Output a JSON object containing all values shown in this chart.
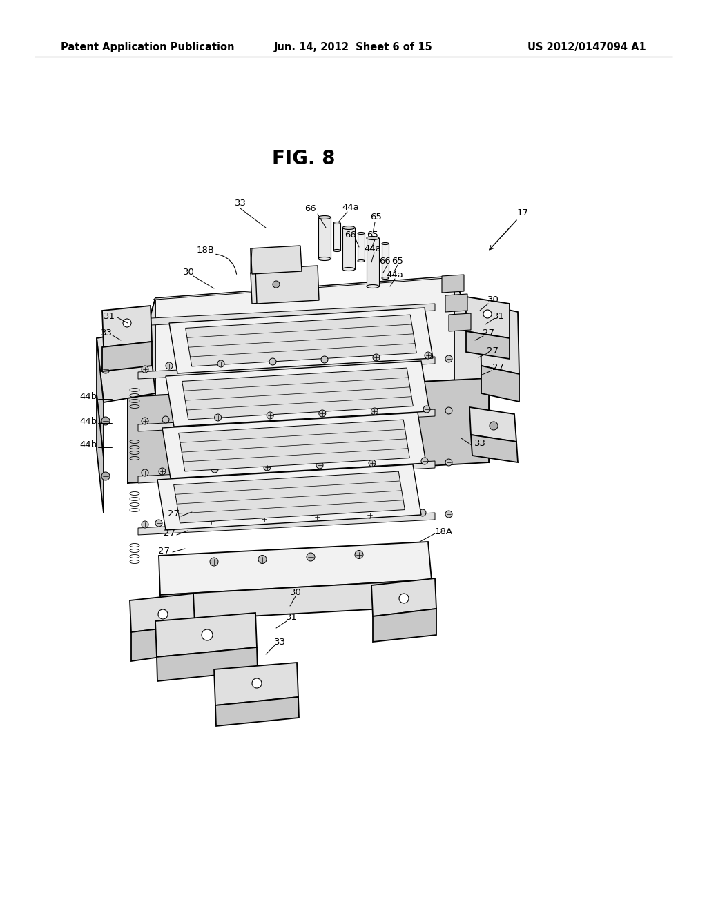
{
  "background_color": "#ffffff",
  "header_left": "Patent Application Publication",
  "header_center": "Jun. 14, 2012  Sheet 6 of 15",
  "header_right": "US 2012/0147094 A1",
  "fig_label": "FIG. 8",
  "header_fontsize": 10.5,
  "fig_label_fontsize": 20,
  "line_color": "#000000",
  "fill_light": "#f2f2f2",
  "fill_mid": "#e0e0e0",
  "fill_dark": "#c8c8c8",
  "fill_darker": "#b0b0b0"
}
